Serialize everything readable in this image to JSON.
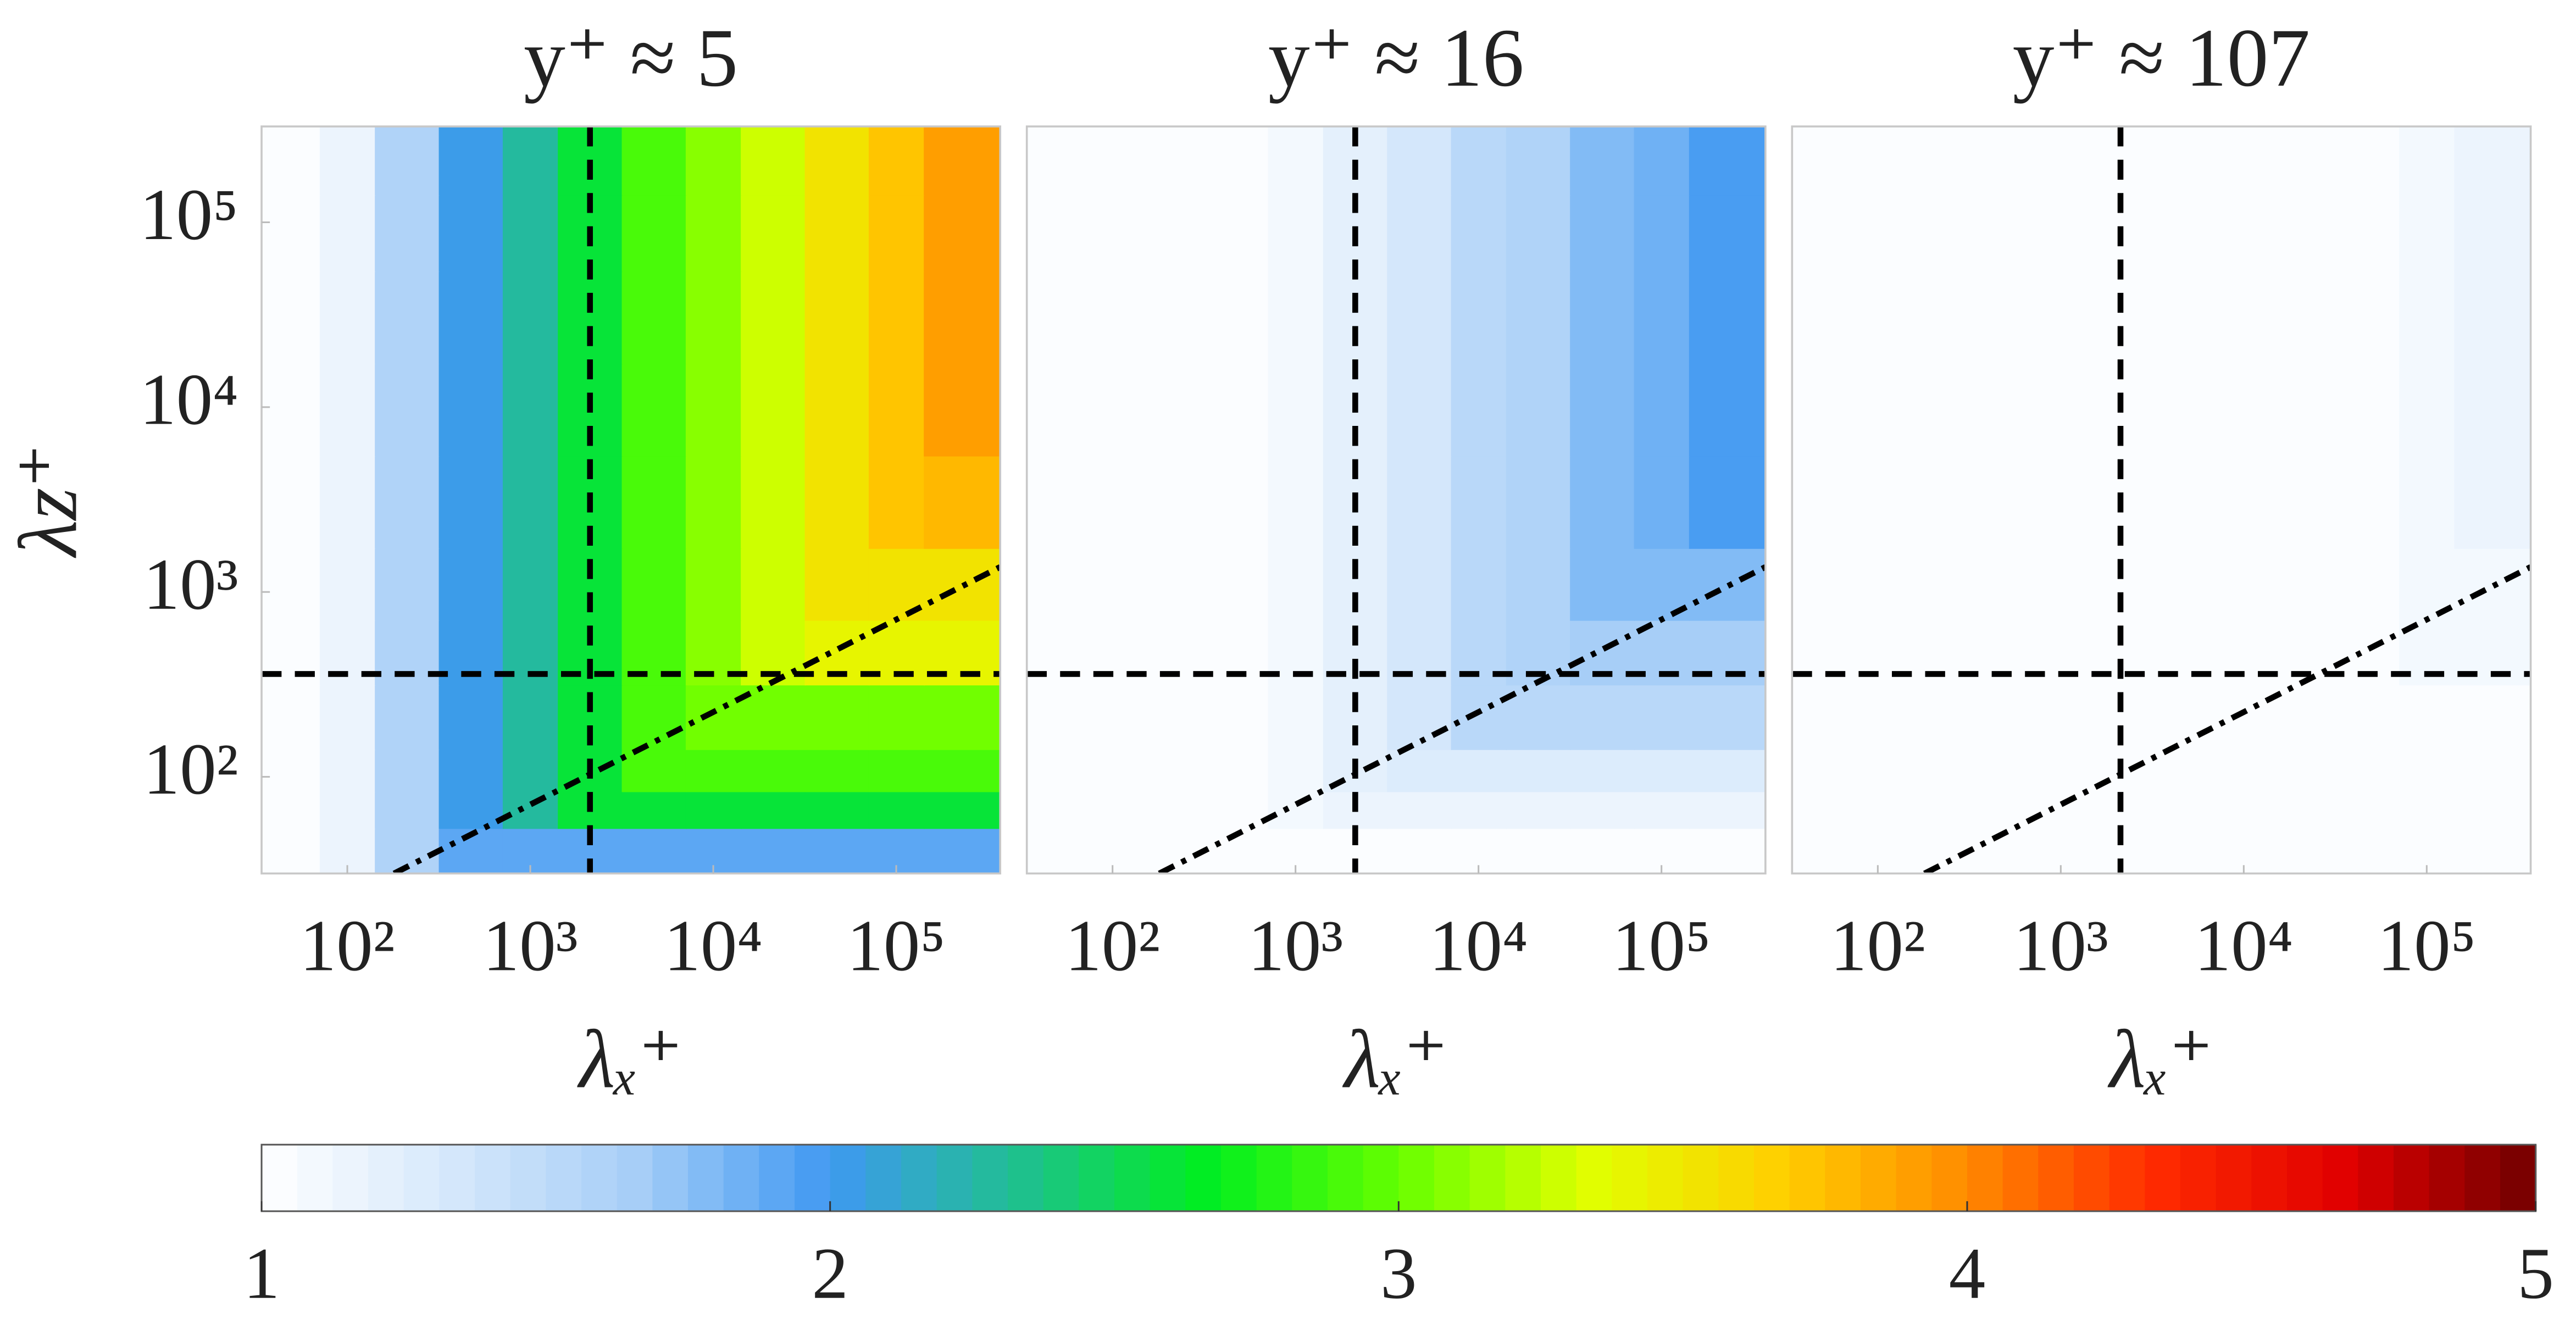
{
  "chart_data": [
    {
      "type": "contour",
      "title": "y⁺ ≈ 5",
      "xlabel": "λₓ⁺",
      "ylabel": "λz⁺",
      "xscale": "log",
      "yscale": "log",
      "xlim": [
        34,
        370000
      ],
      "ylim": [
        30,
        330000
      ],
      "xticks": [
        {
          "value": 100,
          "label": "10²"
        },
        {
          "value": 1000,
          "label": "10³"
        },
        {
          "value": 10000,
          "label": "10⁴"
        },
        {
          "value": 100000,
          "label": "10⁵"
        }
      ],
      "yticks": [
        {
          "value": 100,
          "label": "10²"
        },
        {
          "value": 1000,
          "label": "10³"
        },
        {
          "value": 10000,
          "label": "10⁴"
        },
        {
          "value": 100000,
          "label": "10⁵"
        }
      ],
      "x": [
        50,
        100,
        200,
        500,
        1000,
        2000,
        5000,
        10000,
        20000,
        50000,
        100000,
        200000
      ],
      "y": [
        40,
        70,
        100,
        200,
        500,
        1000,
        3000,
        10000,
        30000,
        100000,
        200000
      ],
      "z": [
        [
          1.0,
          1.15,
          1.6,
          1.9,
          1.9,
          1.9,
          1.9,
          1.9,
          1.9,
          1.9,
          1.9,
          1.9
        ],
        [
          1.0,
          1.15,
          1.6,
          2.0,
          2.3,
          2.6,
          2.6,
          2.6,
          2.6,
          2.6,
          2.6,
          2.6
        ],
        [
          1.0,
          1.15,
          1.6,
          2.0,
          2.3,
          2.6,
          2.9,
          2.9,
          2.9,
          2.9,
          2.9,
          2.9
        ],
        [
          1.0,
          1.15,
          1.6,
          2.0,
          2.3,
          2.6,
          2.9,
          3.0,
          3.0,
          3.0,
          3.0,
          3.0
        ],
        [
          1.0,
          1.15,
          1.6,
          2.0,
          2.3,
          2.6,
          2.9,
          3.1,
          3.3,
          3.4,
          3.4,
          3.4
        ],
        [
          1.0,
          1.15,
          1.6,
          2.0,
          2.3,
          2.6,
          2.9,
          3.1,
          3.3,
          3.5,
          3.55,
          3.55
        ],
        [
          1.0,
          1.15,
          1.6,
          2.0,
          2.3,
          2.6,
          2.9,
          3.1,
          3.3,
          3.5,
          3.7,
          3.8
        ],
        [
          1.0,
          1.15,
          1.6,
          2.0,
          2.3,
          2.6,
          2.9,
          3.1,
          3.3,
          3.5,
          3.7,
          3.9
        ],
        [
          1.0,
          1.15,
          1.6,
          2.0,
          2.3,
          2.6,
          2.9,
          3.1,
          3.3,
          3.5,
          3.7,
          3.9
        ],
        [
          1.0,
          1.15,
          1.6,
          2.0,
          2.3,
          2.6,
          2.9,
          3.1,
          3.3,
          3.5,
          3.7,
          3.9
        ],
        [
          1.0,
          1.15,
          1.6,
          2.0,
          2.3,
          2.6,
          2.9,
          3.1,
          3.3,
          3.5,
          3.7,
          3.9
        ]
      ],
      "vline": 2120,
      "hline": 360,
      "dashdot": {
        "x": [
          180,
          370000
        ],
        "y": [
          30,
          1365
        ]
      }
    },
    {
      "type": "contour",
      "title": "y⁺ ≈ 16",
      "xlabel": "λₓ⁺",
      "xscale": "log",
      "yscale": "log",
      "xlim": [
        34,
        370000
      ],
      "ylim": [
        30,
        330000
      ],
      "xticks": [
        {
          "value": 100,
          "label": "10²"
        },
        {
          "value": 1000,
          "label": "10³"
        },
        {
          "value": 10000,
          "label": "10⁴"
        },
        {
          "value": 100000,
          "label": "10⁵"
        }
      ],
      "x": [
        50,
        100,
        200,
        500,
        1000,
        2000,
        5000,
        10000,
        20000,
        50000,
        100000,
        200000
      ],
      "y": [
        40,
        70,
        100,
        200,
        500,
        1000,
        3000,
        10000,
        30000,
        100000,
        200000
      ],
      "z": [
        [
          1.0,
          1.0,
          1.0,
          1.0,
          1.0,
          1.0,
          1.0,
          1.0,
          1.0,
          1.0,
          1.0,
          1.0
        ],
        [
          1.0,
          1.0,
          1.0,
          1.0,
          1.07,
          1.15,
          1.15,
          1.15,
          1.15,
          1.15,
          1.15,
          1.15
        ],
        [
          1.0,
          1.0,
          1.0,
          1.0,
          1.07,
          1.2,
          1.3,
          1.3,
          1.3,
          1.3,
          1.3,
          1.3
        ],
        [
          1.0,
          1.0,
          1.0,
          1.0,
          1.07,
          1.2,
          1.35,
          1.5,
          1.5,
          1.5,
          1.5,
          1.5
        ],
        [
          1.0,
          1.0,
          1.0,
          1.0,
          1.07,
          1.2,
          1.35,
          1.5,
          1.6,
          1.65,
          1.65,
          1.65
        ],
        [
          1.0,
          1.0,
          1.0,
          1.0,
          1.07,
          1.2,
          1.35,
          1.5,
          1.6,
          1.75,
          1.8,
          1.8
        ],
        [
          1.0,
          1.0,
          1.0,
          1.0,
          1.07,
          1.2,
          1.35,
          1.5,
          1.6,
          1.75,
          1.85,
          1.95
        ],
        [
          1.0,
          1.0,
          1.0,
          1.0,
          1.07,
          1.2,
          1.35,
          1.5,
          1.6,
          1.75,
          1.85,
          1.95
        ],
        [
          1.0,
          1.0,
          1.0,
          1.0,
          1.07,
          1.2,
          1.35,
          1.5,
          1.6,
          1.75,
          1.85,
          1.95
        ],
        [
          1.0,
          1.0,
          1.0,
          1.0,
          1.07,
          1.2,
          1.35,
          1.5,
          1.6,
          1.75,
          1.85,
          1.95
        ],
        [
          1.0,
          1.0,
          1.0,
          1.0,
          1.07,
          1.2,
          1.35,
          1.5,
          1.6,
          1.75,
          1.85,
          1.95
        ]
      ],
      "vline": 2120,
      "hline": 360,
      "dashdot": {
        "x": [
          180,
          370000
        ],
        "y": [
          30,
          1365
        ]
      }
    },
    {
      "type": "contour",
      "title": "y⁺ ≈ 107",
      "xlabel": "λₓ⁺",
      "xscale": "log",
      "yscale": "log",
      "xlim": [
        34,
        370000
      ],
      "ylim": [
        30,
        330000
      ],
      "xticks": [
        {
          "value": 100,
          "label": "10²"
        },
        {
          "value": 1000,
          "label": "10³"
        },
        {
          "value": 10000,
          "label": "10⁴"
        },
        {
          "value": 100000,
          "label": "10⁵"
        }
      ],
      "x": [
        50,
        100,
        200,
        500,
        1000,
        2000,
        5000,
        10000,
        20000,
        50000,
        100000,
        200000
      ],
      "y": [
        40,
        70,
        100,
        200,
        500,
        1000,
        3000,
        10000,
        30000,
        100000,
        200000
      ],
      "z": [
        [
          1.0,
          1.0,
          1.0,
          1.0,
          1.0,
          1.0,
          1.0,
          1.0,
          1.0,
          1.0,
          1.0,
          1.0
        ],
        [
          1.0,
          1.0,
          1.0,
          1.0,
          1.0,
          1.0,
          1.0,
          1.0,
          1.0,
          1.0,
          1.0,
          1.0
        ],
        [
          1.0,
          1.0,
          1.0,
          1.0,
          1.0,
          1.0,
          1.0,
          1.0,
          1.0,
          1.0,
          1.0,
          1.0
        ],
        [
          1.0,
          1.0,
          1.0,
          1.0,
          1.0,
          1.0,
          1.0,
          1.0,
          1.0,
          1.0,
          1.0,
          1.0
        ],
        [
          1.0,
          1.0,
          1.0,
          1.0,
          1.0,
          1.0,
          1.0,
          1.0,
          1.0,
          1.0,
          1.07,
          1.07
        ],
        [
          1.0,
          1.0,
          1.0,
          1.0,
          1.0,
          1.0,
          1.0,
          1.0,
          1.0,
          1.0,
          1.1,
          1.1
        ],
        [
          1.0,
          1.0,
          1.0,
          1.0,
          1.0,
          1.0,
          1.0,
          1.0,
          1.0,
          1.0,
          1.1,
          1.15
        ],
        [
          1.0,
          1.0,
          1.0,
          1.0,
          1.0,
          1.0,
          1.0,
          1.0,
          1.0,
          1.0,
          1.1,
          1.15
        ],
        [
          1.0,
          1.0,
          1.0,
          1.0,
          1.0,
          1.0,
          1.0,
          1.0,
          1.0,
          1.0,
          1.1,
          1.15
        ],
        [
          1.0,
          1.0,
          1.0,
          1.0,
          1.0,
          1.0,
          1.0,
          1.0,
          1.0,
          1.0,
          1.1,
          1.15
        ],
        [
          1.0,
          1.0,
          1.0,
          1.0,
          1.0,
          1.0,
          1.0,
          1.0,
          1.0,
          1.0,
          1.1,
          1.15
        ]
      ],
      "vline": 2120,
      "hline": 360,
      "dashdot": {
        "x": [
          180,
          370000
        ],
        "y": [
          30,
          1365
        ]
      }
    }
  ],
  "colorbar": {
    "clim": [
      1,
      5
    ],
    "ticks": [
      1,
      2,
      3,
      4,
      5
    ],
    "levels": 64,
    "colormap": [
      "#ffffff",
      "#d6e8fb",
      "#a5cdf7",
      "#3f98f2",
      "#1fc08f",
      "#00ee20",
      "#66ff00",
      "#e0ff00",
      "#ffd000",
      "#ff8a00",
      "#ff2a00",
      "#e00000",
      "#700000"
    ]
  }
}
